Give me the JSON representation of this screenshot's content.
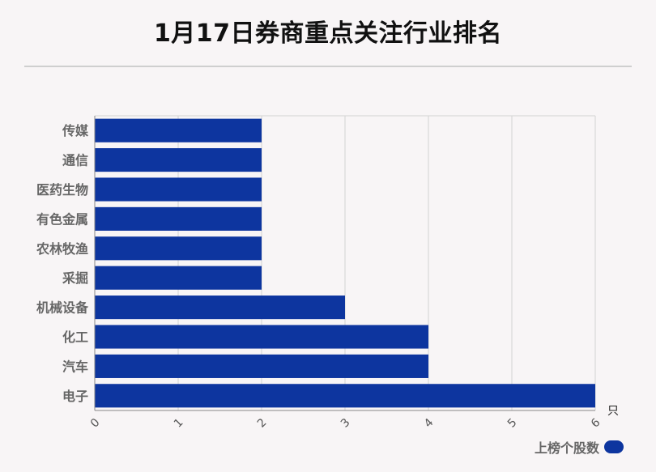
{
  "title": "1月17日券商重点关注行业排名",
  "colors": {
    "bar": "#0d359f",
    "grid": "#d2d2d2",
    "axis": "#888888"
  },
  "chart_data": {
    "type": "bar",
    "orientation": "horizontal",
    "categories": [
      "传媒",
      "通信",
      "医药生物",
      "有色金属",
      "农林牧渔",
      "采掘",
      "机械设备",
      "化工",
      "汽车",
      "电子"
    ],
    "series": [
      {
        "name": "上榜个股数",
        "values": [
          2,
          2,
          2,
          2,
          2,
          2,
          3,
          4,
          4,
          6
        ]
      }
    ],
    "xlim": [
      0,
      6
    ],
    "xticks": [
      0,
      1,
      2,
      3,
      4,
      5,
      6
    ],
    "xunit": "只",
    "grid": true,
    "legend_position": "bottom-right"
  }
}
